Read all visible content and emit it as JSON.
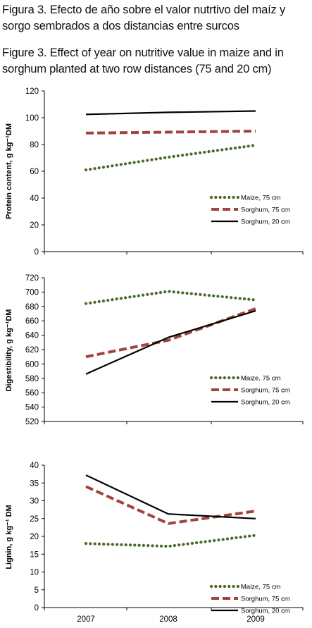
{
  "caption": {
    "spanish_line1": "Figura 3. Efecto de año sobre el valor nutrtivo del maíz y",
    "spanish_line2": "sorgo sembrados a dos distancias entre surcos",
    "english_line1": "Figure 3. Effect  of year on nutritive value in maize and in",
    "english_line2": "sorghum planted at two row distances (75 and 20 cm)"
  },
  "chart_data": [
    {
      "type": "line",
      "ylabel": "Protein content, g kg⁻¹DM",
      "ylim": [
        0,
        120
      ],
      "yticks": [
        0,
        20,
        40,
        60,
        80,
        100,
        120
      ],
      "categories": [
        "2007",
        "2008",
        "2009"
      ],
      "show_x_tick_labels": false,
      "grid": false,
      "legend_placement": "lower-right",
      "series": [
        {
          "name": "Maize, 75 cm",
          "values": [
            61,
            70.5,
            79.5
          ],
          "color": "#4a6a2a",
          "style": "dotted"
        },
        {
          "name": "Sorghum, 75 cm",
          "values": [
            88.5,
            89.2,
            90
          ],
          "color": "#a0443c",
          "style": "dashed"
        },
        {
          "name": "Sorghum, 20 cm",
          "values": [
            102.5,
            104,
            105
          ],
          "color": "#000000",
          "style": "solid"
        }
      ]
    },
    {
      "type": "line",
      "ylabel": "Digestibility, g kg⁻¹DM",
      "ylim": [
        520,
        720
      ],
      "yticks": [
        520,
        540,
        560,
        580,
        600,
        620,
        640,
        660,
        680,
        700,
        720
      ],
      "categories": [
        "2007",
        "2008",
        "2009"
      ],
      "show_x_tick_labels": false,
      "grid": false,
      "legend_placement": "lower-right",
      "series": [
        {
          "name": "Maize, 75 cm",
          "values": [
            684,
            701,
            689
          ],
          "color": "#4a6a2a",
          "style": "dotted"
        },
        {
          "name": "Sorghum, 75 cm",
          "values": [
            610,
            633,
            677
          ],
          "color": "#a0443c",
          "style": "dashed"
        },
        {
          "name": "Sorghum, 20 cm",
          "values": [
            586,
            637,
            674
          ],
          "color": "#000000",
          "style": "solid"
        }
      ]
    },
    {
      "type": "line",
      "ylabel": "Lignin, g kg⁻¹ DM",
      "ylim": [
        0,
        40
      ],
      "yticks": [
        0,
        5,
        10,
        15,
        20,
        25,
        30,
        35,
        40
      ],
      "categories": [
        "2007",
        "2008",
        "2009"
      ],
      "show_x_tick_labels": true,
      "grid": false,
      "legend_placement": "lower-right",
      "series": [
        {
          "name": "Maize, 75 cm",
          "values": [
            18,
            17.2,
            20.3
          ],
          "color": "#4a6a2a",
          "style": "dotted"
        },
        {
          "name": "Sorghum, 75 cm",
          "values": [
            34,
            23.6,
            27.1
          ],
          "color": "#a0443c",
          "style": "dashed"
        },
        {
          "name": "Sorghum, 20 cm",
          "values": [
            37.2,
            26.3,
            25
          ],
          "color": "#000000",
          "style": "solid"
        }
      ]
    }
  ]
}
